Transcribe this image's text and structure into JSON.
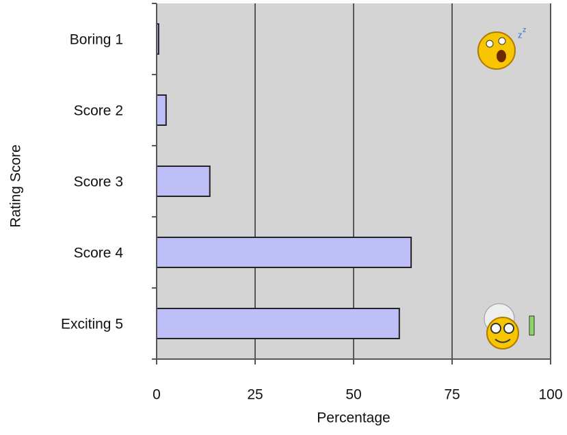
{
  "chart_data": {
    "type": "bar",
    "orientation": "horizontal",
    "categories": [
      "Boring 1",
      "Score 2",
      "Score 3",
      "Score 4",
      "Exciting 5"
    ],
    "values": [
      0.5,
      2.4,
      13.5,
      64.6,
      61.6
    ],
    "color": "#bfbff7",
    "xlim": [
      0,
      100
    ],
    "xticks": [
      0,
      25,
      50,
      75,
      100
    ],
    "xlabel": "Percentage",
    "ylabel": "Rating Score",
    "grid": true
  }
}
